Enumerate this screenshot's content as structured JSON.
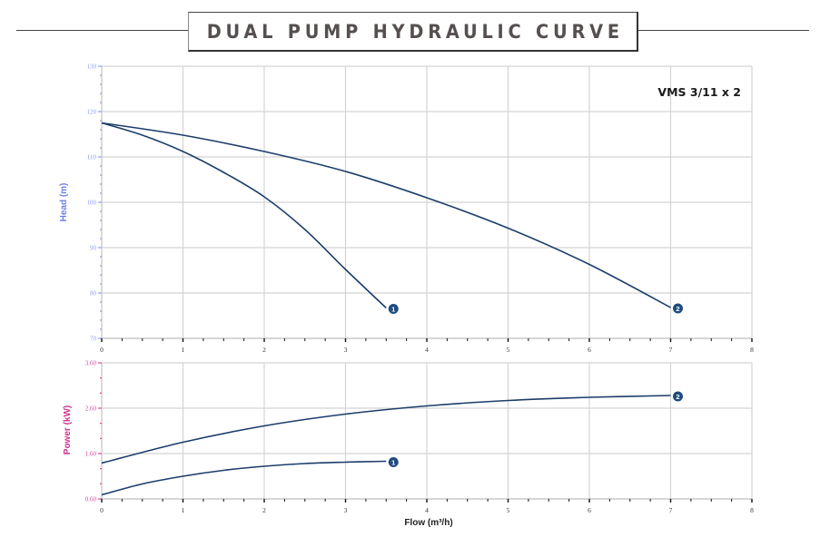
{
  "header": {
    "title": "DUAL PUMP HYDRAULIC CURVE"
  },
  "chart_data": [
    {
      "type": "line",
      "name": "head-chart",
      "title": "",
      "annotation": "VMS 3/11 x 2",
      "xlabel": "",
      "ylabel": "Head (m)",
      "xlim": [
        0,
        8
      ],
      "ylim": [
        70,
        130
      ],
      "x_ticks": [
        "0",
        "1",
        "2",
        "3",
        "4",
        "5",
        "6",
        "7",
        "8"
      ],
      "y_ticks": [
        "70",
        "80",
        "90",
        "100",
        "110",
        "120",
        "130"
      ],
      "grid": true,
      "series": [
        {
          "name": "1",
          "x": [
            0,
            0.5,
            1,
            1.5,
            2,
            2.5,
            3,
            3.5
          ],
          "values": [
            117.5,
            114.8,
            111.2,
            106.6,
            101.2,
            94.0,
            85.2,
            76.7
          ]
        },
        {
          "name": "2",
          "x": [
            0,
            1,
            2,
            3,
            4,
            5,
            6,
            7
          ],
          "values": [
            117.5,
            114.8,
            111.2,
            106.8,
            101.0,
            94.3,
            86.3,
            76.8
          ]
        }
      ],
      "colors": {
        "axis_label": "#6f82e8",
        "tick_label": "#8f9cf0",
        "line": "#1c3d6b",
        "marker": "#1f4b7e",
        "grid": "#d4d4d4"
      }
    },
    {
      "type": "line",
      "name": "power-chart",
      "title": "",
      "xlabel": "Flow (m³/h)",
      "ylabel": "Power (kW)",
      "xlim": [
        0,
        8
      ],
      "ylim": [
        0.6,
        3.6
      ],
      "x_ticks": [
        "0",
        "1",
        "2",
        "3",
        "4",
        "5",
        "6",
        "7",
        "8"
      ],
      "y_ticks": [
        "0.60",
        "1.60",
        "2.60",
        "3.60"
      ],
      "grid": true,
      "series": [
        {
          "name": "1",
          "x": [
            0,
            0.5,
            1,
            1.5,
            2,
            2.5,
            3,
            3.5
          ],
          "values": [
            0.69,
            0.93,
            1.1,
            1.23,
            1.32,
            1.38,
            1.41,
            1.43
          ]
        },
        {
          "name": "2",
          "x": [
            0,
            1,
            2,
            3,
            4,
            5,
            6,
            7
          ],
          "values": [
            1.39,
            1.85,
            2.21,
            2.47,
            2.65,
            2.77,
            2.84,
            2.88
          ]
        }
      ],
      "colors": {
        "axis_label": "#d0338f",
        "tick_label": "#d24a9a",
        "line": "#1c3d6b",
        "marker": "#1f4b7e",
        "grid": "#d4d4d4"
      }
    }
  ]
}
